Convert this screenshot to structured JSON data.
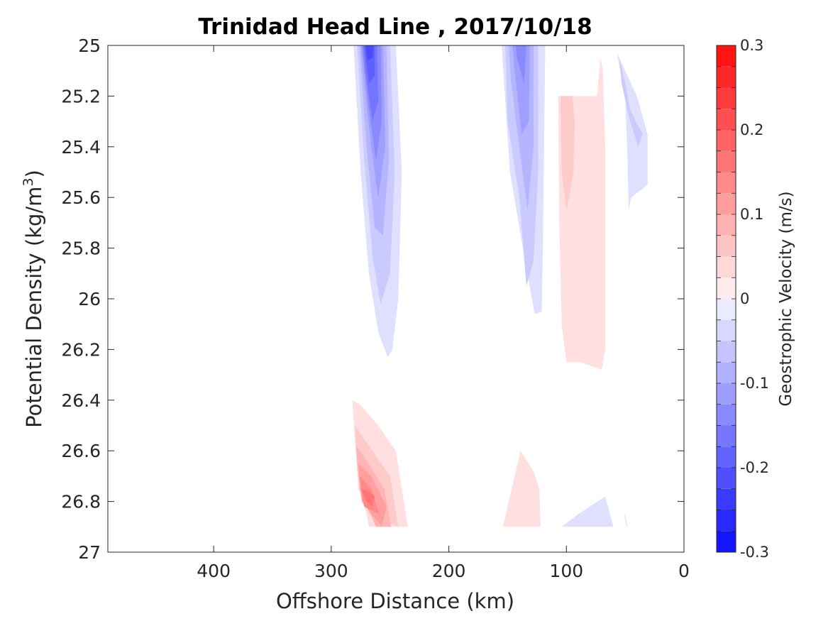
{
  "chart_data": {
    "type": "heatmap",
    "title": "Trinidad Head Line , 2017/10/18",
    "xlabel": "Offshore Distance (km)",
    "ylabel": "Potential Density (kg/m",
    "ylabel_sup": "3",
    "ylabel_close": ")",
    "xlim": [
      490,
      0
    ],
    "ylim": [
      27,
      25
    ],
    "x_reversed": true,
    "y_reversed": true,
    "xticks": [
      400,
      300,
      200,
      100,
      0
    ],
    "yticks": [
      25,
      25.2,
      25.4,
      25.6,
      25.8,
      26,
      26.2,
      26.4,
      26.6,
      26.8,
      27
    ],
    "grid": false,
    "colorbar": {
      "label": "Geostrophic Velocity (m/s)",
      "limits": [
        -0.3,
        0.3
      ],
      "step": 0.025,
      "ticks": [
        0.3,
        0.2,
        0.1,
        0,
        -0.1,
        -0.2,
        -0.3
      ],
      "tick_labels": [
        "0.3",
        "0.2",
        "0.1",
        "0",
        "-0.1",
        "-0.2",
        "-0.3"
      ],
      "negative_color": "#0000ff",
      "positive_color": "#ff0000",
      "zero_color": "#ffffff"
    },
    "features": [
      {
        "name": "offshore-southward-jet-upper",
        "sign": "negative",
        "peak_velocity": -0.25,
        "contours": [
          {
            "level": -0.025,
            "outline": [
              [
                280,
                25
              ],
              [
                245,
                25
              ],
              [
                240,
                25.5
              ],
              [
                243,
                26.0
              ],
              [
                248,
                26.2
              ],
              [
                252,
                26.23
              ],
              [
                260,
                26.13
              ],
              [
                268,
                25.9
              ],
              [
                275,
                25.5
              ],
              [
                281,
                25.0
              ]
            ]
          },
          {
            "level": -0.05,
            "outline": [
              [
                278,
                25
              ],
              [
                250,
                25
              ],
              [
                246,
                25.5
              ],
              [
                250,
                25.9
              ],
              [
                258,
                26.02
              ],
              [
                265,
                25.83
              ],
              [
                272,
                25.45
              ],
              [
                278,
                25.0
              ]
            ]
          },
          {
            "level": -0.075,
            "outline": [
              [
                277,
                25
              ],
              [
                253,
                25
              ],
              [
                251,
                25.45
              ],
              [
                256,
                25.75
              ],
              [
                263,
                25.72
              ],
              [
                270,
                25.4
              ],
              [
                276,
                25.0
              ]
            ]
          },
          {
            "level": -0.1,
            "outline": [
              [
                276,
                25
              ],
              [
                256,
                25
              ],
              [
                254,
                25.4
              ],
              [
                260,
                25.6
              ],
              [
                266,
                25.4
              ],
              [
                273,
                25.1
              ],
              [
                275,
                25.0
              ]
            ]
          },
          {
            "level": -0.125,
            "outline": [
              [
                275,
                25
              ],
              [
                258,
                25
              ],
              [
                257,
                25.3
              ],
              [
                262,
                25.45
              ],
              [
                268,
                25.25
              ],
              [
                274,
                25.0
              ]
            ]
          },
          {
            "level": -0.15,
            "outline": [
              [
                273,
                25
              ],
              [
                261,
                25
              ],
              [
                260,
                25.22
              ],
              [
                265,
                25.3
              ],
              [
                271,
                25.1
              ],
              [
                273,
                25.0
              ]
            ]
          },
          {
            "level": -0.175,
            "outline": [
              [
                272,
                25
              ],
              [
                263,
                25
              ],
              [
                263,
                25.12
              ],
              [
                268,
                25.15
              ],
              [
                272,
                25.0
              ]
            ]
          },
          {
            "level": -0.2,
            "outline": [
              [
                271,
                25
              ],
              [
                264,
                25
              ],
              [
                265,
                25.05
              ],
              [
                269,
                25.06
              ],
              [
                271,
                25.0
              ]
            ]
          }
        ]
      },
      {
        "name": "nearshore-southward-jet-upper",
        "sign": "negative",
        "peak_velocity": -0.2,
        "contours": [
          {
            "level": -0.025,
            "outline": [
              [
                155,
                25
              ],
              [
                118,
                25
              ],
              [
                119,
                25.4
              ],
              [
                120,
                25.8
              ],
              [
                121,
                26.05
              ],
              [
                127,
                26.06
              ],
              [
                137,
                25.8
              ],
              [
                148,
                25.5
              ],
              [
                155,
                25.0
              ]
            ]
          },
          {
            "level": -0.05,
            "outline": [
              [
                152,
                25
              ],
              [
                124,
                25
              ],
              [
                124,
                25.5
              ],
              [
                128,
                25.85
              ],
              [
                134,
                25.95
              ],
              [
                140,
                25.6
              ],
              [
                150,
                25.3
              ],
              [
                152,
                25.0
              ]
            ]
          },
          {
            "level": -0.075,
            "outline": [
              [
                149,
                25
              ],
              [
                128,
                25
              ],
              [
                128,
                25.4
              ],
              [
                133,
                25.65
              ],
              [
                140,
                25.4
              ],
              [
                147,
                25.15
              ],
              [
                149,
                25.0
              ]
            ]
          },
          {
            "level": -0.1,
            "outline": [
              [
                146,
                25
              ],
              [
                131,
                25
              ],
              [
                132,
                25.3
              ],
              [
                138,
                25.35
              ],
              [
                144,
                25.1
              ],
              [
                146,
                25.0
              ]
            ]
          },
          {
            "level": -0.125,
            "outline": [
              [
                143,
                25
              ],
              [
                134,
                25
              ],
              [
                136,
                25.15
              ],
              [
                142,
                25.05
              ],
              [
                143,
                25.0
              ]
            ]
          }
        ]
      },
      {
        "name": "coastal-southward-flow-upper",
        "sign": "negative",
        "peak_velocity": -0.05,
        "contours": [
          {
            "level": -0.025,
            "outline": [
              [
                57,
                25.03
              ],
              [
                50,
                25.2
              ],
              [
                48,
                25.45
              ],
              [
                47,
                25.65
              ],
              [
                51,
                25.75
              ],
              [
                45,
                25.6
              ],
              [
                31,
                25.55
              ],
              [
                31,
                25.35
              ],
              [
                40,
                25.2
              ],
              [
                50,
                25.1
              ],
              [
                57,
                25.03
              ]
            ]
          },
          {
            "level": -0.05,
            "outline": [
              [
                55,
                25.05
              ],
              [
                50,
                25.15
              ],
              [
                46,
                25.25
              ],
              [
                41,
                25.3
              ],
              [
                35,
                25.35
              ],
              [
                39,
                25.4
              ],
              [
                47,
                25.28
              ],
              [
                53,
                25.15
              ],
              [
                55,
                25.05
              ]
            ]
          }
        ]
      },
      {
        "name": "northward-counterflow-upper",
        "sign": "positive",
        "peak_velocity": 0.05,
        "contours": [
          {
            "level": 0.025,
            "outline": [
              [
                107,
                25.2
              ],
              [
                106,
                25.7
              ],
              [
                104,
                26.1
              ],
              [
                100,
                26.25
              ],
              [
                88,
                26.25
              ],
              [
                70,
                26.28
              ],
              [
                67,
                26.2
              ],
              [
                67,
                25.4
              ],
              [
                69,
                25.1
              ],
              [
                71,
                25.05
              ],
              [
                74,
                25.2
              ],
              [
                108,
                25.2
              ]
            ]
          },
          {
            "level": 0.05,
            "outline": [
              [
                105,
                25.2
              ],
              [
                104,
                25.5
              ],
              [
                100,
                25.65
              ],
              [
                94,
                25.5
              ],
              [
                93,
                25.3
              ],
              [
                95,
                25.2
              ],
              [
                105,
                25.2
              ]
            ]
          }
        ]
      },
      {
        "name": "offshore-northward-flow-deep",
        "sign": "positive",
        "peak_velocity": 0.2,
        "contours": [
          {
            "level": 0.025,
            "outline": [
              [
                282,
                26.4
              ],
              [
                280,
                26.55
              ],
              [
                277,
                26.75
              ],
              [
                270,
                26.85
              ],
              [
                268,
                26.9
              ],
              [
                235,
                26.9
              ],
              [
                240,
                26.75
              ],
              [
                245,
                26.6
              ],
              [
                260,
                26.5
              ],
              [
                275,
                26.42
              ],
              [
                282,
                26.4
              ]
            ]
          },
          {
            "level": 0.05,
            "outline": [
              [
                280,
                26.5
              ],
              [
                277,
                26.7
              ],
              [
                268,
                26.85
              ],
              [
                243,
                26.9
              ],
              [
                250,
                26.7
              ],
              [
                265,
                26.6
              ],
              [
                280,
                26.5
              ]
            ]
          },
          {
            "level": 0.075,
            "outline": [
              [
                279,
                26.58
              ],
              [
                276,
                26.75
              ],
              [
                262,
                26.9
              ],
              [
                249,
                26.9
              ],
              [
                255,
                26.75
              ],
              [
                268,
                26.65
              ],
              [
                279,
                26.58
              ]
            ]
          },
          {
            "level": 0.1,
            "outline": [
              [
                277,
                26.65
              ],
              [
                274,
                26.8
              ],
              [
                257,
                26.9
              ],
              [
                253,
                26.82
              ],
              [
                266,
                26.7
              ],
              [
                277,
                26.65
              ]
            ]
          },
          {
            "level": 0.125,
            "outline": [
              [
                276,
                26.7
              ],
              [
                272,
                26.82
              ],
              [
                259,
                26.85
              ],
              [
                266,
                26.75
              ],
              [
                276,
                26.7
              ]
            ]
          },
          {
            "level": 0.15,
            "outline": [
              [
                275,
                26.75
              ],
              [
                270,
                26.8
              ],
              [
                265,
                26.82
              ],
              [
                263,
                26.78
              ],
              [
                268,
                26.76
              ],
              [
                275,
                26.75
              ]
            ]
          }
        ]
      },
      {
        "name": "nearshore-northward-flow-deep",
        "sign": "positive",
        "peak_velocity": 0.025,
        "contours": [
          {
            "level": 0.025,
            "outline": [
              [
                139,
                26.6
              ],
              [
                145,
                26.72
              ],
              [
                154,
                26.9
              ],
              [
                122,
                26.9
              ],
              [
                123,
                26.75
              ],
              [
                128,
                26.68
              ],
              [
                139,
                26.6
              ]
            ]
          }
        ]
      },
      {
        "name": "coastal-southward-flow-deep",
        "sign": "negative",
        "peak_velocity": -0.025,
        "contours": [
          {
            "level": -0.025,
            "outline": [
              [
                104,
                26.9
              ],
              [
                90,
                26.85
              ],
              [
                80,
                26.82
              ],
              [
                67,
                26.78
              ],
              [
                60,
                26.9
              ],
              [
                104,
                26.9
              ]
            ]
          }
        ]
      },
      {
        "name": "coastal-northward-flow-deep",
        "sign": "positive",
        "peak_velocity": 0.025,
        "contours": [
          {
            "level": 0.025,
            "outline": [
              [
                51,
                26.85
              ],
              [
                49,
                26.9
              ],
              [
                48,
                26.9
              ],
              [
                50,
                26.85
              ]
            ]
          }
        ]
      }
    ]
  }
}
